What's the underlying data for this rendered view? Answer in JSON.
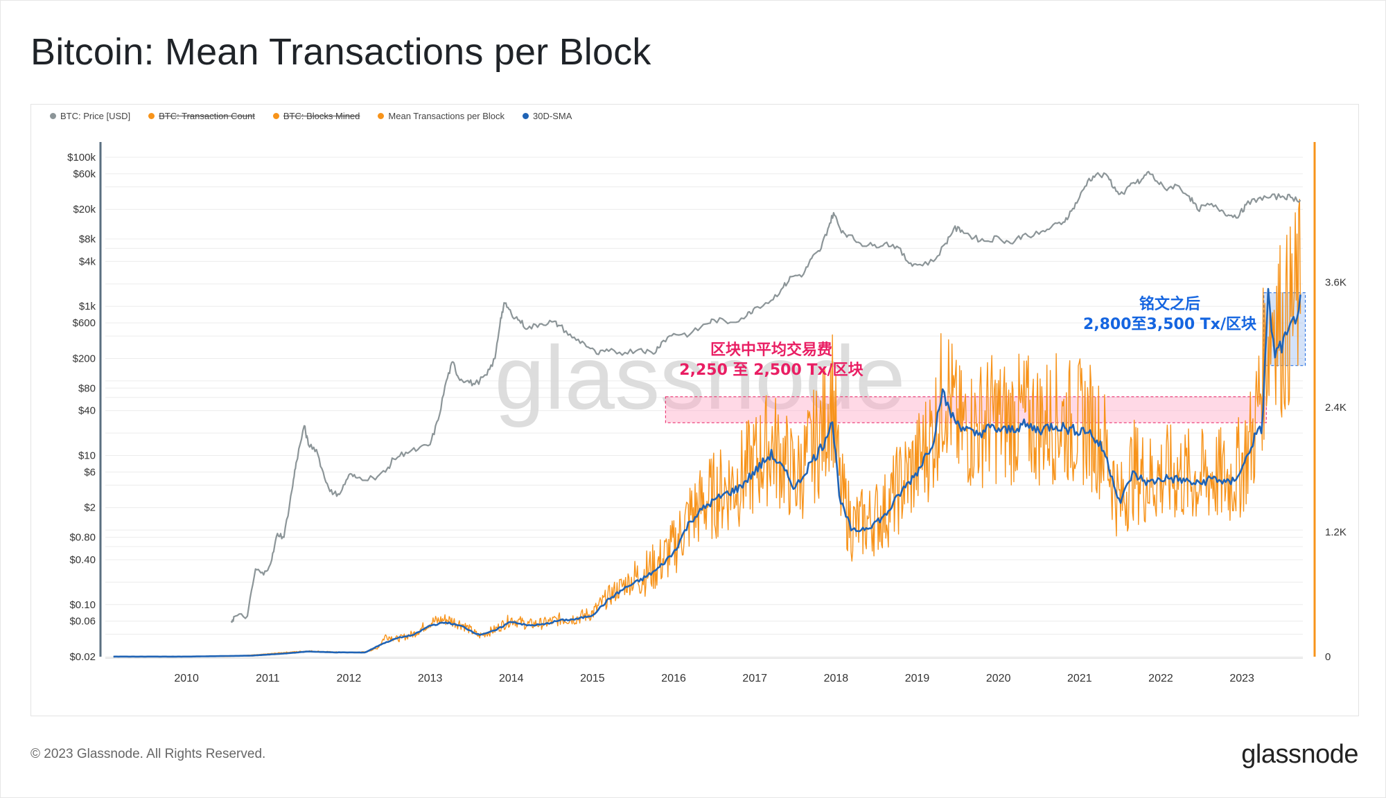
{
  "title": "Bitcoin: Mean Transactions per Block",
  "footer": {
    "copyright": "© 2023 Glassnode. All Rights Reserved.",
    "logo_text": "glassnode"
  },
  "watermark": "glassnode",
  "colors": {
    "price": "#8c9598",
    "orange": "#f7931a",
    "sma": "#1f63b5",
    "pink": "#e91e63",
    "blue": "#1565e0"
  },
  "chart_data": {
    "type": "line",
    "legend": [
      {
        "label": "BTC: Price [USD]",
        "color": "#8c9598",
        "disabled": false
      },
      {
        "label": "BTC: Transaction Count",
        "color": "#f7931a",
        "disabled": true
      },
      {
        "label": "BTC: Blocks Mined",
        "color": "#f7931a",
        "disabled": true
      },
      {
        "label": "Mean Transactions per Block",
        "color": "#f7931a",
        "disabled": false
      },
      {
        "label": "30D-SMA",
        "color": "#1f63b5",
        "disabled": false
      }
    ],
    "x_ticks": [
      "2010",
      "2011",
      "2012",
      "2013",
      "2014",
      "2015",
      "2016",
      "2017",
      "2018",
      "2019",
      "2020",
      "2021",
      "2022",
      "2023"
    ],
    "x_range": [
      2009.0,
      2023.75
    ],
    "left_axis": {
      "scale": "log",
      "range": [
        0.02,
        160000
      ],
      "ticks": [
        {
          "label": "$100k",
          "value": 100000
        },
        {
          "label": "$60k",
          "value": 60000
        },
        {
          "label": "$20k",
          "value": 20000
        },
        {
          "label": "$8k",
          "value": 8000
        },
        {
          "label": "$4k",
          "value": 4000
        },
        {
          "label": "$1k",
          "value": 1000
        },
        {
          "label": "$600",
          "value": 600
        },
        {
          "label": "$200",
          "value": 200
        },
        {
          "label": "$80",
          "value": 80
        },
        {
          "label": "$40",
          "value": 40
        },
        {
          "label": "$10",
          "value": 10
        },
        {
          "label": "$6",
          "value": 6
        },
        {
          "label": "$2",
          "value": 2
        },
        {
          "label": "$0.80",
          "value": 0.8
        },
        {
          "label": "$0.40",
          "value": 0.4
        },
        {
          "label": "$0.10",
          "value": 0.1
        },
        {
          "label": "$0.06",
          "value": 0.06
        },
        {
          "label": "$0.02",
          "value": 0.02
        }
      ]
    },
    "right_axis": {
      "scale": "linear",
      "range": [
        0,
        4950
      ],
      "ticks": [
        {
          "label": "3.6K",
          "value": 3600
        },
        {
          "label": "2.4K",
          "value": 2400
        },
        {
          "label": "1.2K",
          "value": 1200
        },
        {
          "label": "0",
          "value": 0
        }
      ]
    },
    "price_series": [
      [
        2010.55,
        0.06
      ],
      [
        2010.6,
        0.07
      ],
      [
        2010.75,
        0.07
      ],
      [
        2010.85,
        0.3
      ],
      [
        2010.95,
        0.25
      ],
      [
        2011.05,
        0.4
      ],
      [
        2011.12,
        0.9
      ],
      [
        2011.2,
        0.8
      ],
      [
        2011.3,
        3.5
      ],
      [
        2011.35,
        8
      ],
      [
        2011.45,
        25
      ],
      [
        2011.5,
        14
      ],
      [
        2011.6,
        12
      ],
      [
        2011.7,
        5
      ],
      [
        2011.8,
        3
      ],
      [
        2011.9,
        3.2
      ],
      [
        2012.0,
        5.5
      ],
      [
        2012.1,
        5
      ],
      [
        2012.3,
        5
      ],
      [
        2012.45,
        6
      ],
      [
        2012.55,
        9
      ],
      [
        2012.7,
        11
      ],
      [
        2012.85,
        12
      ],
      [
        2013.0,
        14
      ],
      [
        2013.1,
        30
      ],
      [
        2013.2,
        100
      ],
      [
        2013.28,
        180
      ],
      [
        2013.35,
        110
      ],
      [
        2013.45,
        100
      ],
      [
        2013.55,
        90
      ],
      [
        2013.7,
        120
      ],
      [
        2013.8,
        200
      ],
      [
        2013.87,
        700
      ],
      [
        2013.92,
        1100
      ],
      [
        2014.0,
        800
      ],
      [
        2014.1,
        650
      ],
      [
        2014.2,
        500
      ],
      [
        2014.35,
        580
      ],
      [
        2014.5,
        620
      ],
      [
        2014.6,
        550
      ],
      [
        2014.75,
        380
      ],
      [
        2014.9,
        320
      ],
      [
        2015.05,
        230
      ],
      [
        2015.2,
        250
      ],
      [
        2015.4,
        240
      ],
      [
        2015.6,
        270
      ],
      [
        2015.75,
        230
      ],
      [
        2015.85,
        330
      ],
      [
        2016.0,
        430
      ],
      [
        2016.2,
        420
      ],
      [
        2016.4,
        580
      ],
      [
        2016.5,
        660
      ],
      [
        2016.7,
        610
      ],
      [
        2016.9,
        750
      ],
      [
        2017.0,
        960
      ],
      [
        2017.2,
        1200
      ],
      [
        2017.35,
        1800
      ],
      [
        2017.45,
        2500
      ],
      [
        2017.6,
        2700
      ],
      [
        2017.7,
        4400
      ],
      [
        2017.8,
        5500
      ],
      [
        2017.9,
        11000
      ],
      [
        2017.97,
        18000
      ],
      [
        2018.05,
        11000
      ],
      [
        2018.15,
        9000
      ],
      [
        2018.3,
        7000
      ],
      [
        2018.45,
        6500
      ],
      [
        2018.6,
        7000
      ],
      [
        2018.75,
        6400
      ],
      [
        2018.88,
        4000
      ],
      [
        2019.0,
        3600
      ],
      [
        2019.2,
        4000
      ],
      [
        2019.35,
        7000
      ],
      [
        2019.45,
        11000
      ],
      [
        2019.55,
        10500
      ],
      [
        2019.7,
        8300
      ],
      [
        2019.85,
        7500
      ],
      [
        2020.0,
        8500
      ],
      [
        2020.15,
        7000
      ],
      [
        2020.3,
        9000
      ],
      [
        2020.5,
        9300
      ],
      [
        2020.65,
        11500
      ],
      [
        2020.8,
        13500
      ],
      [
        2020.9,
        19000
      ],
      [
        2021.0,
        29000
      ],
      [
        2021.1,
        48000
      ],
      [
        2021.2,
        58000
      ],
      [
        2021.35,
        55000
      ],
      [
        2021.45,
        35000
      ],
      [
        2021.55,
        32000
      ],
      [
        2021.65,
        45000
      ],
      [
        2021.75,
        47000
      ],
      [
        2021.85,
        64000
      ],
      [
        2021.95,
        48000
      ],
      [
        2022.05,
        38000
      ],
      [
        2022.2,
        42000
      ],
      [
        2022.35,
        30000
      ],
      [
        2022.45,
        20000
      ],
      [
        2022.6,
        23000
      ],
      [
        2022.75,
        19500
      ],
      [
        2022.85,
        16500
      ],
      [
        2022.97,
        16800
      ],
      [
        2023.05,
        23000
      ],
      [
        2023.2,
        28000
      ],
      [
        2023.35,
        29000
      ],
      [
        2023.5,
        30000
      ],
      [
        2023.6,
        29000
      ],
      [
        2023.72,
        26500
      ]
    ],
    "mean_tx_per_block": [
      [
        2009.1,
        1
      ],
      [
        2009.5,
        1
      ],
      [
        2010.0,
        1
      ],
      [
        2010.5,
        2
      ],
      [
        2010.9,
        20
      ],
      [
        2011.2,
        40
      ],
      [
        2011.5,
        55
      ],
      [
        2011.8,
        45
      ],
      [
        2012.0,
        40
      ],
      [
        2012.2,
        45
      ],
      [
        2012.35,
        80
      ],
      [
        2012.45,
        200
      ],
      [
        2012.6,
        170
      ],
      [
        2012.8,
        220
      ],
      [
        2013.0,
        330
      ],
      [
        2013.2,
        360
      ],
      [
        2013.4,
        310
      ],
      [
        2013.6,
        200
      ],
      [
        2013.8,
        260
      ],
      [
        2014.0,
        360
      ],
      [
        2014.2,
        310
      ],
      [
        2014.4,
        320
      ],
      [
        2014.6,
        360
      ],
      [
        2014.8,
        370
      ],
      [
        2015.0,
        420
      ],
      [
        2015.2,
        580
      ],
      [
        2015.4,
        700
      ],
      [
        2015.6,
        780
      ],
      [
        2015.8,
        880
      ],
      [
        2016.0,
        1050
      ],
      [
        2016.2,
        1350
      ],
      [
        2016.4,
        1500
      ],
      [
        2016.6,
        1600
      ],
      [
        2016.8,
        1700
      ],
      [
        2017.0,
        1850
      ],
      [
        2017.2,
        2050
      ],
      [
        2017.35,
        1900
      ],
      [
        2017.5,
        1700
      ],
      [
        2017.65,
        1900
      ],
      [
        2017.85,
        2200
      ],
      [
        2017.95,
        2600
      ],
      [
        2018.05,
        1600
      ],
      [
        2018.2,
        1250
      ],
      [
        2018.4,
        1300
      ],
      [
        2018.6,
        1400
      ],
      [
        2018.8,
        1650
      ],
      [
        2019.0,
        1850
      ],
      [
        2019.2,
        2150
      ],
      [
        2019.35,
        2650
      ],
      [
        2019.5,
        2200
      ],
      [
        2019.7,
        2200
      ],
      [
        2019.9,
        2300
      ],
      [
        2020.1,
        2250
      ],
      [
        2020.3,
        2300
      ],
      [
        2020.5,
        2250
      ],
      [
        2020.7,
        2300
      ],
      [
        2020.9,
        2250
      ],
      [
        2021.1,
        2250
      ],
      [
        2021.3,
        2050
      ],
      [
        2021.5,
        1450
      ],
      [
        2021.65,
        1800
      ],
      [
        2021.85,
        1700
      ],
      [
        2022.05,
        1750
      ],
      [
        2022.25,
        1750
      ],
      [
        2022.45,
        1700
      ],
      [
        2022.65,
        1750
      ],
      [
        2022.85,
        1700
      ],
      [
        2023.0,
        1850
      ],
      [
        2023.15,
        2150
      ],
      [
        2023.3,
        3000
      ],
      [
        2023.4,
        3400
      ],
      [
        2023.5,
        3100
      ],
      [
        2023.6,
        3300
      ],
      [
        2023.72,
        3500
      ]
    ],
    "sma_30d": [
      [
        2009.1,
        1
      ],
      [
        2010.0,
        1
      ],
      [
        2010.8,
        10
      ],
      [
        2011.2,
        30
      ],
      [
        2011.5,
        50
      ],
      [
        2011.8,
        42
      ],
      [
        2012.2,
        40
      ],
      [
        2012.4,
        120
      ],
      [
        2012.6,
        180
      ],
      [
        2012.8,
        210
      ],
      [
        2013.0,
        300
      ],
      [
        2013.2,
        330
      ],
      [
        2013.4,
        290
      ],
      [
        2013.6,
        210
      ],
      [
        2013.8,
        250
      ],
      [
        2014.0,
        340
      ],
      [
        2014.2,
        300
      ],
      [
        2014.4,
        310
      ],
      [
        2014.6,
        350
      ],
      [
        2014.8,
        360
      ],
      [
        2015.0,
        400
      ],
      [
        2015.2,
        550
      ],
      [
        2015.4,
        660
      ],
      [
        2015.6,
        740
      ],
      [
        2015.8,
        840
      ],
      [
        2016.0,
        1000
      ],
      [
        2016.2,
        1300
      ],
      [
        2016.4,
        1450
      ],
      [
        2016.6,
        1550
      ],
      [
        2016.8,
        1620
      ],
      [
        2017.0,
        1780
      ],
      [
        2017.2,
        1950
      ],
      [
        2017.35,
        1800
      ],
      [
        2017.5,
        1620
      ],
      [
        2017.65,
        1820
      ],
      [
        2017.85,
        2050
      ],
      [
        2017.95,
        2300
      ],
      [
        2018.05,
        1500
      ],
      [
        2018.2,
        1200
      ],
      [
        2018.4,
        1250
      ],
      [
        2018.6,
        1350
      ],
      [
        2018.8,
        1580
      ],
      [
        2019.0,
        1780
      ],
      [
        2019.2,
        2080
      ],
      [
        2019.3,
        2550
      ],
      [
        2019.45,
        2280
      ],
      [
        2019.7,
        2130
      ],
      [
        2019.9,
        2200
      ],
      [
        2020.1,
        2170
      ],
      [
        2020.3,
        2230
      ],
      [
        2020.5,
        2180
      ],
      [
        2020.7,
        2230
      ],
      [
        2020.9,
        2180
      ],
      [
        2021.1,
        2180
      ],
      [
        2021.3,
        1980
      ],
      [
        2021.5,
        1480
      ],
      [
        2021.65,
        1760
      ],
      [
        2021.85,
        1670
      ],
      [
        2022.05,
        1720
      ],
      [
        2022.25,
        1700
      ],
      [
        2022.45,
        1660
      ],
      [
        2022.65,
        1720
      ],
      [
        2022.85,
        1660
      ],
      [
        2023.0,
        1800
      ],
      [
        2023.15,
        2100
      ],
      [
        2023.25,
        2200
      ],
      [
        2023.32,
        3500
      ],
      [
        2023.4,
        2900
      ],
      [
        2023.5,
        3000
      ],
      [
        2023.6,
        3150
      ],
      [
        2023.72,
        3400
      ]
    ],
    "annotations": [
      {
        "id": "pre",
        "line1": "区块中平均交易费",
        "line2": "2,250 至 2,500 Tx/区块",
        "color": "#e91e63",
        "x_range": [
          2015.9,
          2023.3
        ],
        "y_range": [
          2250,
          2500
        ]
      },
      {
        "id": "post",
        "line1": "铭文之后",
        "line2": "2,800至3,500 Tx/区块",
        "color": "#1565e0",
        "x_range": [
          2023.27,
          2023.78
        ],
        "y_range": [
          2800,
          3500
        ]
      }
    ]
  }
}
